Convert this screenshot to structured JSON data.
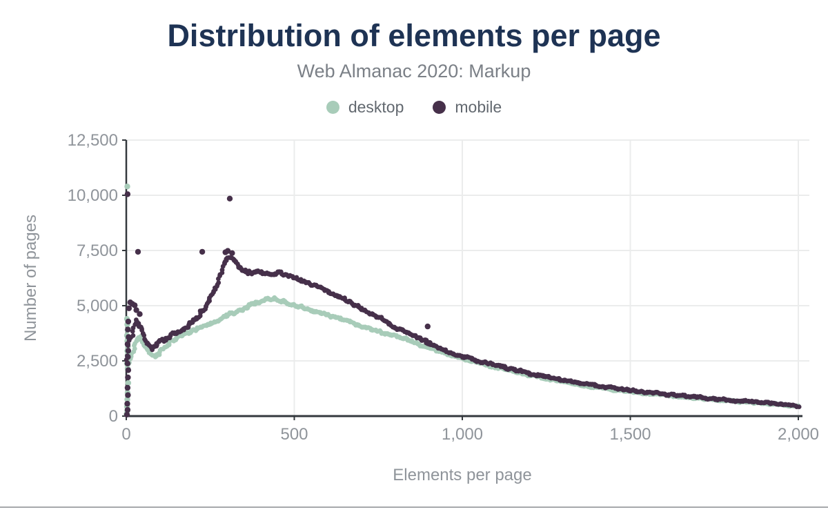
{
  "chart_data": {
    "type": "scatter",
    "title": "Distribution of elements per page",
    "subtitle": "Web Almanac 2020: Markup",
    "xlabel": "Elements per page",
    "ylabel": "Number of pages",
    "xlim": [
      0,
      2000
    ],
    "ylim": [
      0,
      12500
    ],
    "grid": true,
    "legend_position": "top",
    "xticks": [
      {
        "value": 0,
        "label": "0"
      },
      {
        "value": 500,
        "label": "500"
      },
      {
        "value": 1000,
        "label": "1,000"
      },
      {
        "value": 1500,
        "label": "1,500"
      },
      {
        "value": 2000,
        "label": "2,000"
      }
    ],
    "yticks": [
      {
        "value": 0,
        "label": "0"
      },
      {
        "value": 2500,
        "label": "2,500"
      },
      {
        "value": 5000,
        "label": "5,000"
      },
      {
        "value": 7500,
        "label": "7,500"
      },
      {
        "value": 10000,
        "label": "10,000"
      },
      {
        "value": 12500,
        "label": "12,500"
      }
    ],
    "colors": {
      "title": "#1e3354",
      "subtitle": "#7b8087",
      "axis": "#33383d",
      "grid": "#ebecec",
      "tick_label": "#8f949a",
      "axis_title": "#8f949a",
      "legend_label": "#62686f"
    },
    "series": [
      {
        "name": "desktop",
        "color": "#a8ccb9",
        "spread": 100,
        "trend": [
          [
            0,
            2350
          ],
          [
            10,
            2450
          ],
          [
            20,
            2900
          ],
          [
            30,
            3350
          ],
          [
            40,
            3600
          ],
          [
            55,
            3200
          ],
          [
            70,
            2850
          ],
          [
            85,
            2700
          ],
          [
            100,
            2900
          ],
          [
            120,
            3200
          ],
          [
            140,
            3450
          ],
          [
            160,
            3600
          ],
          [
            180,
            3750
          ],
          [
            200,
            3900
          ],
          [
            225,
            4050
          ],
          [
            250,
            4200
          ],
          [
            275,
            4350
          ],
          [
            300,
            4550
          ],
          [
            325,
            4700
          ],
          [
            350,
            4850
          ],
          [
            375,
            5050
          ],
          [
            400,
            5200
          ],
          [
            420,
            5300
          ],
          [
            440,
            5300
          ],
          [
            460,
            5220
          ],
          [
            480,
            5100
          ],
          [
            500,
            5000
          ],
          [
            525,
            4900
          ],
          [
            550,
            4800
          ],
          [
            575,
            4700
          ],
          [
            600,
            4580
          ],
          [
            625,
            4450
          ],
          [
            650,
            4330
          ],
          [
            675,
            4210
          ],
          [
            700,
            4090
          ],
          [
            725,
            3970
          ],
          [
            750,
            3850
          ],
          [
            775,
            3730
          ],
          [
            800,
            3680
          ],
          [
            825,
            3520
          ],
          [
            850,
            3380
          ],
          [
            875,
            3240
          ],
          [
            900,
            3110
          ],
          [
            925,
            2980
          ],
          [
            950,
            2850
          ],
          [
            975,
            2720
          ],
          [
            1000,
            2600
          ],
          [
            1050,
            2400
          ],
          [
            1100,
            2200
          ],
          [
            1150,
            2020
          ],
          [
            1200,
            1850
          ],
          [
            1250,
            1700
          ],
          [
            1300,
            1550
          ],
          [
            1350,
            1420
          ],
          [
            1400,
            1300
          ],
          [
            1450,
            1190
          ],
          [
            1500,
            1090
          ],
          [
            1550,
            1010
          ],
          [
            1600,
            940
          ],
          [
            1650,
            870
          ],
          [
            1700,
            810
          ],
          [
            1750,
            750
          ],
          [
            1800,
            690
          ],
          [
            1850,
            630
          ],
          [
            1900,
            570
          ],
          [
            1950,
            510
          ],
          [
            2000,
            440
          ]
        ],
        "outliers": [
          [
            3,
            10400
          ],
          [
            2,
            4400
          ],
          [
            3,
            4150
          ],
          [
            4,
            3900
          ],
          [
            2,
            3650
          ],
          [
            3,
            3400
          ],
          [
            5,
            3150
          ],
          [
            3,
            2950
          ],
          [
            4,
            2750
          ],
          [
            2,
            2550
          ],
          [
            3,
            2350
          ],
          [
            4,
            2150
          ],
          [
            6,
            1500
          ],
          [
            4,
            1050
          ],
          [
            3,
            750
          ],
          [
            2,
            430
          ],
          [
            3,
            230
          ],
          [
            1,
            90
          ]
        ]
      },
      {
        "name": "mobile",
        "color": "#46304a",
        "spread": 120,
        "trend": [
          [
            0,
            2600
          ],
          [
            10,
            3300
          ],
          [
            20,
            3900
          ],
          [
            30,
            4300
          ],
          [
            40,
            4100
          ],
          [
            50,
            3700
          ],
          [
            60,
            3300
          ],
          [
            75,
            3050
          ],
          [
            90,
            3250
          ],
          [
            110,
            3450
          ],
          [
            130,
            3600
          ],
          [
            150,
            3750
          ],
          [
            170,
            3900
          ],
          [
            190,
            4150
          ],
          [
            210,
            4400
          ],
          [
            230,
            4800
          ],
          [
            250,
            5300
          ],
          [
            265,
            5800
          ],
          [
            280,
            6400
          ],
          [
            290,
            6900
          ],
          [
            300,
            7150
          ],
          [
            310,
            7250
          ],
          [
            320,
            7080
          ],
          [
            330,
            6830
          ],
          [
            345,
            6620
          ],
          [
            360,
            6520
          ],
          [
            380,
            6500
          ],
          [
            400,
            6540
          ],
          [
            420,
            6470
          ],
          [
            440,
            6430
          ],
          [
            460,
            6490
          ],
          [
            480,
            6380
          ],
          [
            500,
            6250
          ],
          [
            520,
            6130
          ],
          [
            540,
            6030
          ],
          [
            560,
            5920
          ],
          [
            580,
            5800
          ],
          [
            600,
            5620
          ],
          [
            625,
            5450
          ],
          [
            650,
            5270
          ],
          [
            675,
            5080
          ],
          [
            700,
            4880
          ],
          [
            725,
            4680
          ],
          [
            750,
            4480
          ],
          [
            775,
            4280
          ],
          [
            800,
            3980
          ],
          [
            825,
            3850
          ],
          [
            850,
            3680
          ],
          [
            875,
            3480
          ],
          [
            900,
            3290
          ],
          [
            925,
            3130
          ],
          [
            950,
            2970
          ],
          [
            975,
            2830
          ],
          [
            1000,
            2700
          ],
          [
            1050,
            2490
          ],
          [
            1100,
            2290
          ],
          [
            1150,
            2110
          ],
          [
            1200,
            1940
          ],
          [
            1250,
            1780
          ],
          [
            1300,
            1630
          ],
          [
            1350,
            1500
          ],
          [
            1400,
            1380
          ],
          [
            1450,
            1270
          ],
          [
            1500,
            1170
          ],
          [
            1550,
            1080
          ],
          [
            1600,
            1000
          ],
          [
            1650,
            925
          ],
          [
            1700,
            855
          ],
          [
            1750,
            790
          ],
          [
            1800,
            725
          ],
          [
            1850,
            660
          ],
          [
            1900,
            600
          ],
          [
            1950,
            540
          ],
          [
            2000,
            465
          ]
        ],
        "outliers": [
          [
            4,
            10050
          ],
          [
            308,
            9850
          ],
          [
            35,
            7440
          ],
          [
            226,
            7440
          ],
          [
            295,
            7420
          ],
          [
            302,
            7480
          ],
          [
            315,
            7380
          ],
          [
            897,
            4060
          ],
          [
            892,
            3420
          ],
          [
            903,
            3310
          ],
          [
            12,
            5150
          ],
          [
            18,
            5080
          ],
          [
            25,
            5020
          ],
          [
            8,
            4880
          ],
          [
            30,
            4800
          ],
          [
            40,
            4620
          ],
          [
            6,
            4280
          ],
          [
            5,
            3920
          ],
          [
            7,
            3580
          ],
          [
            4,
            3260
          ],
          [
            6,
            2960
          ],
          [
            5,
            2680
          ],
          [
            4,
            2380
          ],
          [
            6,
            2080
          ],
          [
            5,
            1750
          ],
          [
            4,
            1280
          ],
          [
            5,
            950
          ],
          [
            3,
            560
          ],
          [
            4,
            280
          ],
          [
            2,
            70
          ]
        ]
      }
    ]
  }
}
